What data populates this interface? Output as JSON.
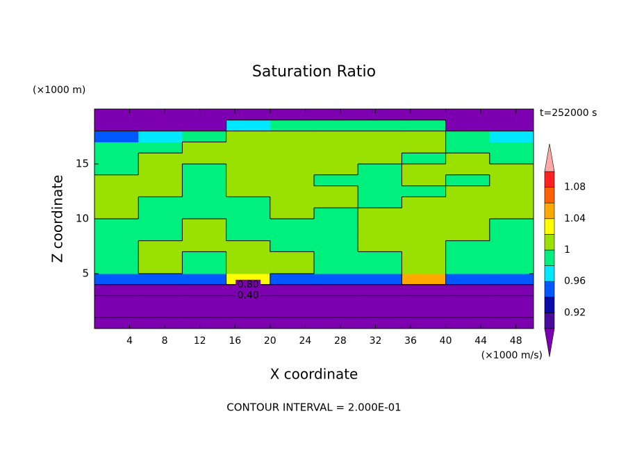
{
  "chart_data": {
    "type": "contour",
    "title": "Saturation Ratio",
    "x_label": "X coordinate",
    "y_label": "Z coordinate",
    "x_unit": "(×1000 m/s)",
    "y_unit": "(×1000 m)",
    "time_label": "t=252000 s",
    "footnote": "CONTOUR INTERVAL = 2.000E-01",
    "xlim": [
      0,
      50
    ],
    "ylim": [
      0,
      20
    ],
    "xticks": [
      4,
      8,
      12,
      16,
      20,
      24,
      28,
      32,
      36,
      40,
      44,
      48
    ],
    "yticks": [
      5,
      10,
      15
    ],
    "x": [
      2.5,
      7.5,
      12.5,
      17.5,
      22.5,
      27.5,
      32.5,
      37.5,
      42.5,
      47.5
    ],
    "z": [
      0.5,
      1.5,
      2.5,
      3.5,
      4.5,
      5.5,
      6.5,
      7.5,
      8.5,
      9.5,
      10.5,
      11.5,
      12.5,
      13.5,
      14.5,
      15.5,
      16.5,
      17.5,
      18.5,
      19.5
    ],
    "values": [
      [
        0.15,
        0.15,
        0.15,
        0.15,
        0.15,
        0.15,
        0.15,
        0.15,
        0.15,
        0.15
      ],
      [
        0.25,
        0.25,
        0.25,
        0.25,
        0.25,
        0.25,
        0.25,
        0.25,
        0.25,
        0.25
      ],
      [
        0.35,
        0.35,
        0.35,
        0.35,
        0.35,
        0.35,
        0.35,
        0.35,
        0.35,
        0.35
      ],
      [
        0.55,
        0.55,
        0.55,
        0.55,
        0.55,
        0.55,
        0.55,
        0.55,
        0.55,
        0.55
      ],
      [
        0.95,
        0.95,
        0.95,
        1.03,
        0.95,
        0.95,
        0.95,
        1.05,
        0.95,
        0.95
      ],
      [
        0.99,
        1.01,
        0.99,
        1.01,
        1.01,
        0.99,
        0.99,
        1.01,
        0.99,
        0.99
      ],
      [
        0.99,
        1.01,
        0.99,
        1.01,
        1.01,
        0.99,
        0.99,
        1.01,
        0.99,
        0.99
      ],
      [
        0.99,
        1.01,
        1.01,
        1.01,
        0.99,
        0.99,
        1.01,
        1.01,
        0.99,
        0.99
      ],
      [
        0.99,
        0.99,
        1.01,
        0.99,
        0.99,
        0.99,
        1.01,
        1.01,
        1.01,
        0.99
      ],
      [
        0.99,
        0.99,
        1.01,
        0.99,
        0.99,
        0.99,
        1.01,
        1.01,
        1.01,
        0.99
      ],
      [
        1.01,
        0.99,
        0.99,
        0.99,
        1.01,
        0.99,
        1.01,
        1.01,
        1.01,
        1.01
      ],
      [
        1.01,
        0.99,
        0.99,
        0.99,
        1.01,
        1.01,
        0.99,
        1.01,
        1.01,
        1.01
      ],
      [
        1.01,
        1.01,
        0.99,
        1.01,
        1.01,
        1.01,
        0.99,
        0.99,
        1.01,
        1.01
      ],
      [
        1.01,
        1.01,
        0.99,
        1.01,
        1.01,
        0.99,
        0.99,
        1.01,
        0.99,
        1.01
      ],
      [
        0.99,
        1.01,
        0.99,
        1.01,
        1.01,
        1.01,
        0.99,
        1.01,
        1.01,
        1.01
      ],
      [
        0.99,
        1.01,
        1.01,
        1.01,
        1.01,
        1.01,
        1.01,
        0.99,
        1.01,
        0.99
      ],
      [
        0.99,
        0.99,
        1.01,
        1.01,
        1.01,
        1.01,
        1.01,
        1.01,
        0.99,
        0.99
      ],
      [
        0.95,
        0.96,
        0.99,
        1.01,
        1.01,
        1.01,
        1.01,
        1.01,
        0.99,
        0.96
      ],
      [
        0.7,
        0.7,
        0.75,
        0.96,
        0.99,
        0.99,
        0.99,
        0.98,
        0.7,
        0.7
      ],
      [
        0.7,
        0.65,
        0.7,
        0.7,
        0.7,
        0.7,
        0.7,
        0.7,
        0.7,
        0.7
      ]
    ],
    "contour_levels": [
      0.2,
      0.4,
      0.6,
      0.8,
      1
    ],
    "contour_labels": [
      {
        "value": 0.4,
        "label": "0.40"
      },
      {
        "value": 0.8,
        "label": "0.80"
      }
    ],
    "colorbar": {
      "levels": [
        0.9,
        0.92,
        0.94,
        0.96,
        0.98,
        1,
        1.02,
        1.04,
        1.06,
        1.08,
        1.1
      ],
      "colors": [
        "#7d00b0",
        "#4a0a9c",
        "#0a0aa8",
        "#0058ff",
        "#00e8ff",
        "#00f080",
        "#9ae000",
        "#ffff00",
        "#ffa800",
        "#ff6000",
        "#ff2020",
        "#ffa8a8"
      ],
      "ticks": [
        0.92,
        0.96,
        1,
        1.04,
        1.08
      ]
    }
  }
}
